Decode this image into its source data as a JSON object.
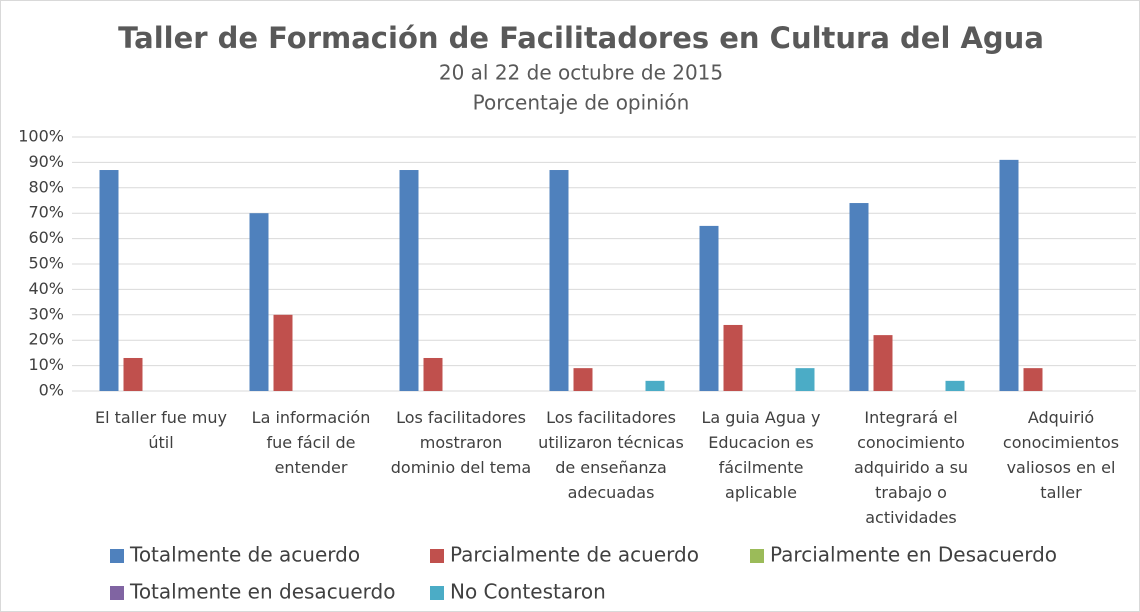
{
  "chart_data": {
    "type": "bar",
    "title": "Taller de Formación de Facilitadores en Cultura del Agua",
    "subtitle": [
      "20 al 22 de octubre de 2015",
      "Porcentaje de opinión"
    ],
    "categories": [
      "El taller fue muy útil",
      "La información fue fácil de entender",
      "Los facilitadores mostraron dominio del tema",
      "Los facilitadores utilizaron técnicas de enseñanza adecuadas",
      "La guia Agua y Educacion es fácilmente aplicable",
      "Integrará el conocimiento adquirido a su trabajo o actividades",
      "Adquirió conocimientos valiosos en el taller"
    ],
    "series": [
      {
        "name": "Totalmente de acuerdo",
        "color": "#4f81bd",
        "values": [
          87,
          70,
          87,
          87,
          65,
          74,
          91
        ]
      },
      {
        "name": "Parcialmente de acuerdo",
        "color": "#c0504d",
        "values": [
          13,
          30,
          13,
          9,
          26,
          22,
          9
        ]
      },
      {
        "name": "Parcialmente en Desacuerdo",
        "color": "#9bbb59",
        "values": [
          0,
          0,
          0,
          0,
          0,
          0,
          0
        ]
      },
      {
        "name": "Totalmente en desacuerdo",
        "color": "#8064a2",
        "values": [
          0,
          0,
          0,
          0,
          0,
          0,
          0
        ]
      },
      {
        "name": "No Contestaron",
        "color": "#4bacc6",
        "values": [
          0,
          0,
          0,
          4,
          9,
          4,
          0
        ]
      }
    ],
    "ylim": [
      0,
      100
    ],
    "yticks": [
      {
        "value": 0,
        "label": "0%"
      },
      {
        "value": 10,
        "label": "10%"
      },
      {
        "value": 20,
        "label": "20%"
      },
      {
        "value": 30,
        "label": "30%"
      },
      {
        "value": 40,
        "label": "40%"
      },
      {
        "value": 50,
        "label": "50%"
      },
      {
        "value": 60,
        "label": "60%"
      },
      {
        "value": 70,
        "label": "70%"
      },
      {
        "value": 80,
        "label": "80%"
      },
      {
        "value": 90,
        "label": "90%"
      },
      {
        "value": 100,
        "label": "100%"
      }
    ],
    "grid": true,
    "legend": "bottom"
  }
}
